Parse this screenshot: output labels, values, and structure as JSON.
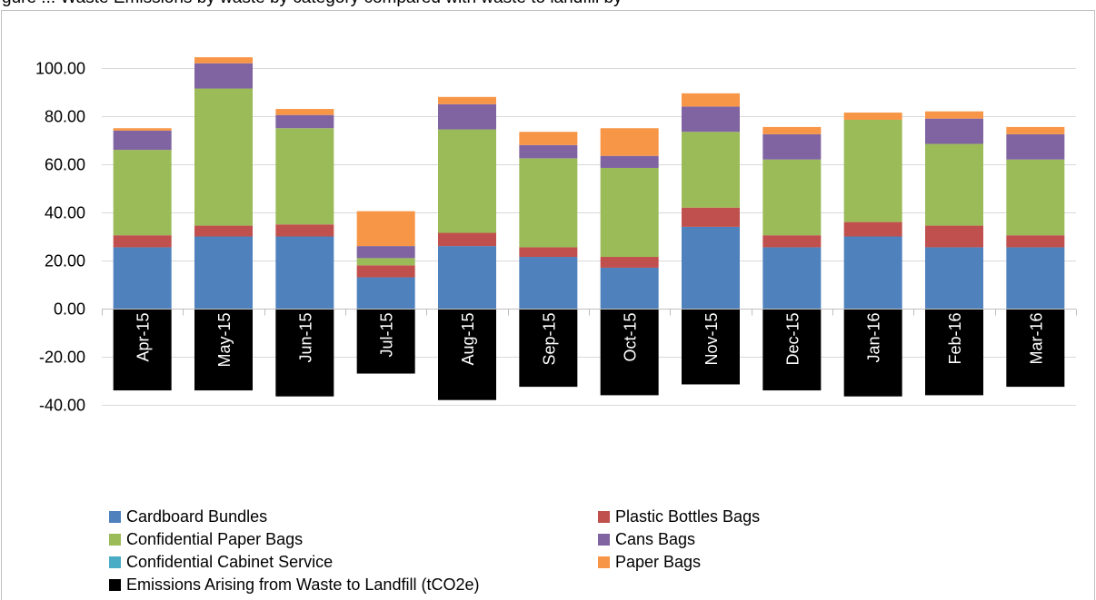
{
  "page": {
    "caption": "gure ...  Waste Emissions by waste by category compared with waste to landfill by"
  },
  "chart_data": {
    "type": "bar",
    "stacked": true,
    "categories": [
      "Apr-15",
      "May-15",
      "Jun-15",
      "Jul-15",
      "Aug-15",
      "Sep-15",
      "Oct-15",
      "Nov-15",
      "Dec-15",
      "Jan-16",
      "Feb-16",
      "Mar-16"
    ],
    "ylim": [
      -40,
      100
    ],
    "yticks": [
      "100.00",
      "80.00",
      "60.00",
      "40.00",
      "20.00",
      "0.00",
      "-20.00",
      "-40.00"
    ],
    "ytick_values": [
      100,
      80,
      60,
      40,
      20,
      0,
      -20,
      -40
    ],
    "grid": true,
    "legend_position": "bottom",
    "series": [
      {
        "name": "Cardboard Bundles",
        "color": "#4F81BD",
        "values": [
          25.5,
          30,
          30,
          13,
          26,
          21.5,
          17,
          34,
          25.5,
          30,
          25.5,
          25.5
        ]
      },
      {
        "name": "Plastic Bottles Bags",
        "color": "#C0504D",
        "values": [
          5,
          4.5,
          5,
          5,
          5.5,
          4,
          4.5,
          8,
          5,
          6,
          9,
          5
        ]
      },
      {
        "name": "Confidential    Paper Bags",
        "color": "#9BBB59",
        "values": [
          35.5,
          57,
          40,
          3,
          43,
          37,
          37,
          31.5,
          31.5,
          42.5,
          34,
          31.5
        ]
      },
      {
        "name": "Cans Bags",
        "color": "#8064A2",
        "values": [
          8,
          10.5,
          5.5,
          5,
          10.5,
          5.5,
          5,
          10.5,
          10.5,
          0,
          10.5,
          10.5
        ]
      },
      {
        "name": "Confidential Cabinet Service",
        "color": "#4BACC6",
        "values": [
          0,
          0,
          0,
          0,
          0,
          0,
          0,
          0,
          0,
          0,
          0,
          0
        ]
      },
      {
        "name": "Paper Bags",
        "color": "#F79646",
        "values": [
          1,
          2.5,
          2.5,
          14.5,
          3,
          5.5,
          11.5,
          5.5,
          3,
          3,
          3,
          3
        ]
      },
      {
        "name": "Emissions Arising from Waste to Landfill (tCO2e)",
        "color": "#000000",
        "values": [
          -34,
          -34,
          -36.5,
          -27,
          -38,
          -32.5,
          -36,
          -31.5,
          -34,
          -36.5,
          -36,
          -32.5
        ]
      }
    ]
  }
}
